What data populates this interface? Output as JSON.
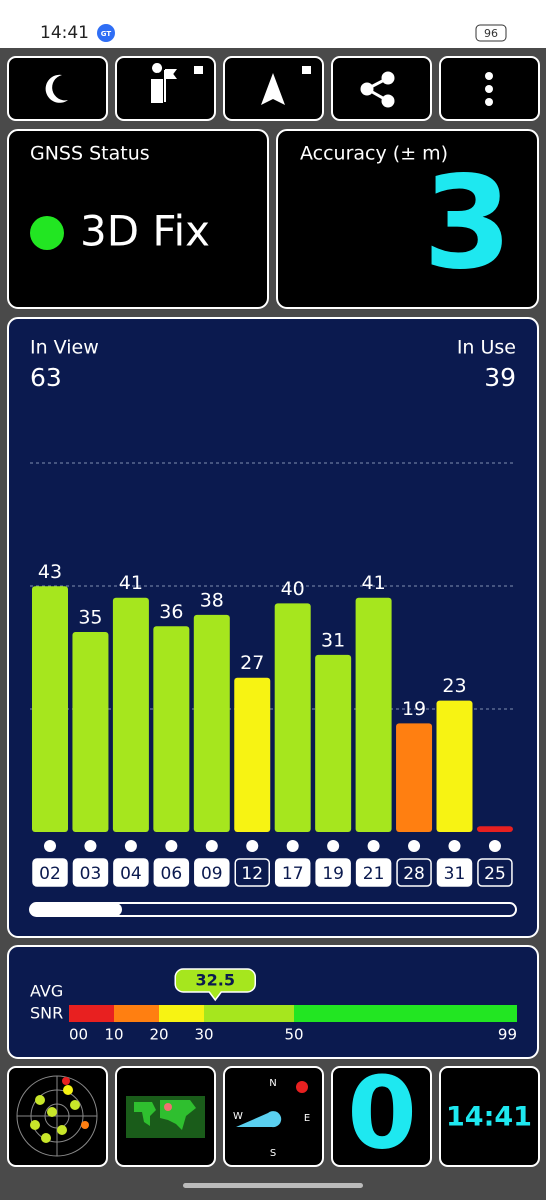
{
  "status_bar": {
    "time": "14:41",
    "badge": "GT",
    "battery": "96"
  },
  "gnss_status": {
    "title": "GNSS Status",
    "value": "3D Fix",
    "color": "#22e622"
  },
  "accuracy": {
    "title": "Accuracy (± m)",
    "value": 3
  },
  "satellites": {
    "in_view_label": "In View",
    "in_view": 63,
    "in_use_label": "In Use",
    "in_use": 39,
    "ids": [
      "02",
      "03",
      "04",
      "06",
      "09",
      "12",
      "17",
      "19",
      "21",
      "28",
      "31",
      "25"
    ],
    "values": [
      43,
      35,
      41,
      36,
      38,
      27,
      40,
      31,
      41,
      19,
      23,
      1
    ],
    "colors": [
      "#a6e61e",
      "#a6e61e",
      "#a6e61e",
      "#a6e61e",
      "#a6e61e",
      "#f7f313",
      "#a6e61e",
      "#a6e61e",
      "#a6e61e",
      "#ff7f11",
      "#f7f313",
      "#e82020"
    ],
    "used": [
      true,
      true,
      true,
      true,
      true,
      false,
      true,
      true,
      true,
      false,
      true,
      false
    ],
    "ylim": [
      0,
      70
    ]
  },
  "avg_snr": {
    "label_1": "AVG",
    "label_2": "SNR",
    "value": 32.5,
    "ticks": [
      {
        "value": 0,
        "label": "00"
      },
      10,
      20,
      30,
      50,
      99
    ],
    "colors": [
      "#e82020",
      "#ff7f11",
      "#f7f313",
      "#a6e61e",
      "#22e622"
    ]
  },
  "bottom": {
    "count": 0,
    "time": "14:41",
    "compass": [
      "N",
      "E",
      "S",
      "W"
    ]
  }
}
